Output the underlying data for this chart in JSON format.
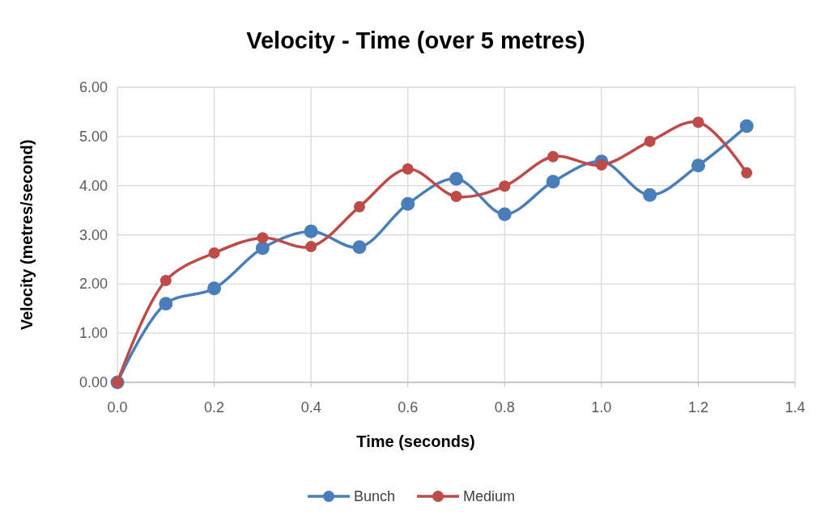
{
  "chart_data": {
    "type": "line",
    "title": "Velocity - Time (over 5 metres)",
    "xlabel": "Time (seconds)",
    "ylabel": "Velocity (metres/second)",
    "x": [
      0,
      0.1,
      0.2,
      0.3,
      0.4,
      0.5,
      0.6,
      0.7,
      0.8,
      0.9,
      1.0,
      1.1,
      1.2,
      1.3
    ],
    "series": [
      {
        "name": "Bunch",
        "color": "#4a7ebb",
        "values": [
          0,
          1.6,
          1.91,
          2.73,
          3.07,
          2.75,
          3.63,
          4.14,
          3.42,
          4.08,
          4.49,
          3.81,
          4.41,
          5.21
        ]
      },
      {
        "name": "Medium",
        "color": "#be4b48",
        "values": [
          0,
          2.07,
          2.63,
          2.94,
          2.76,
          3.57,
          4.34,
          3.78,
          3.99,
          4.59,
          4.42,
          4.9,
          5.29,
          4.26
        ]
      }
    ],
    "xlim": [
      0,
      1.4
    ],
    "xticks": [
      {
        "value": 0,
        "label": "0.0"
      },
      {
        "value": 0.2,
        "label": "0.2"
      },
      {
        "value": 0.4,
        "label": "0.4"
      },
      {
        "value": 0.6,
        "label": "0.6"
      },
      {
        "value": 0.8,
        "label": "0.8"
      },
      {
        "value": 1.0,
        "label": "1.0"
      },
      {
        "value": 1.2,
        "label": "1.2"
      },
      {
        "value": 1.4,
        "label": "1.4"
      }
    ],
    "ylim": [
      0,
      6
    ],
    "yticks": [
      {
        "value": 0,
        "label": "0.00"
      },
      {
        "value": 1,
        "label": "1.00"
      },
      {
        "value": 2,
        "label": "2.00"
      },
      {
        "value": 3,
        "label": "3.00"
      },
      {
        "value": 4,
        "label": "4.00"
      },
      {
        "value": 5,
        "label": "5.00"
      },
      {
        "value": 6,
        "label": "6.00"
      }
    ],
    "grid": true,
    "legend": "bottom",
    "marker": "circle",
    "line_style": "solid"
  }
}
